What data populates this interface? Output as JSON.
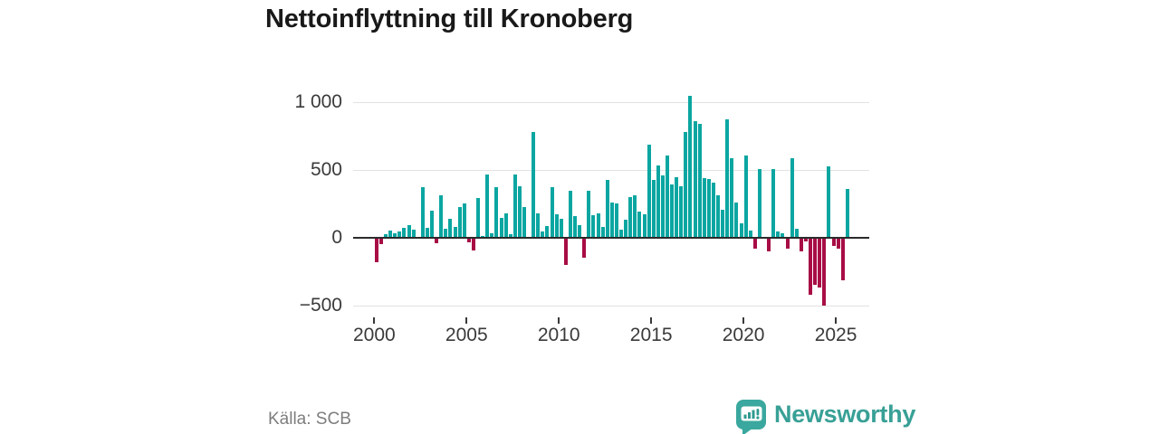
{
  "title": "Nettoinflyttning till Kronoberg",
  "source": "Källa: SCB",
  "branding": {
    "wordmark": "Newsworthy",
    "icon": "newsworthy-speech-bubble-bar-chart-icon"
  },
  "colors": {
    "positive_bar": "#0ba6a1",
    "negative_bar": "#a80d45",
    "grid": "#e2e2e2",
    "zero_line": "#2b2b2b",
    "axis_text": "#3a3a3a",
    "source_text": "#7d7d7d",
    "brand_teal": "#38a096",
    "background": "#ffffff"
  },
  "chart_data": {
    "type": "bar",
    "title": "Nettoinflyttning till Kronoberg",
    "frequency": "quarterly",
    "x_range": [
      "2000 Q1",
      "2025 Q3"
    ],
    "xlabel": "",
    "ylabel": "",
    "ylim": [
      -613,
      1120
    ],
    "grid": "horizontal",
    "legend": "none",
    "x_ticks": [
      "2000",
      "2005",
      "2010",
      "2015",
      "2020",
      "2025"
    ],
    "y_ticks": [
      {
        "label": "1 000",
        "value": 1000
      },
      {
        "label": "500",
        "value": 500
      },
      {
        "label": "0",
        "value": 0
      },
      {
        "label": "−500",
        "value": -500
      }
    ],
    "series": [
      {
        "name": "Nettoinflyttning",
        "values": [
          -175,
          -40,
          27,
          56,
          31,
          44,
          76,
          93,
          60,
          8,
          371,
          76,
          200,
          -33,
          315,
          64,
          138,
          82,
          227,
          253,
          -25,
          -86,
          293,
          15,
          464,
          33,
          375,
          149,
          182,
          27,
          464,
          382,
          227,
          10,
          782,
          182,
          50,
          90,
          375,
          175,
          140,
          -195,
          350,
          160,
          95,
          -140,
          350,
          170,
          180,
          80,
          427,
          260,
          255,
          60,
          131,
          300,
          315,
          193,
          175,
          686,
          427,
          531,
          460,
          604,
          394,
          449,
          382,
          782,
          1044,
          860,
          838,
          438,
          431,
          409,
          316,
          209,
          876,
          587,
          260,
          104,
          609,
          53,
          -75,
          510,
          10,
          -90,
          505,
          49,
          33,
          -73,
          587,
          70,
          -96,
          -20,
          -413,
          -340,
          -358,
          -490,
          530,
          -51,
          -73,
          -305,
          360
        ]
      }
    ]
  }
}
